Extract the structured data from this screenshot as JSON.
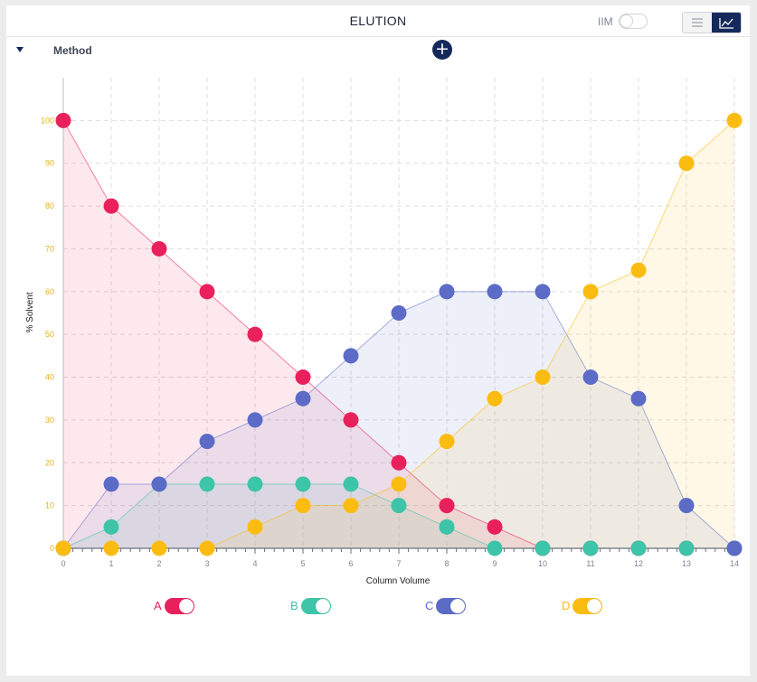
{
  "header": {
    "title": "ELUTION",
    "iim_label": "IIM",
    "iim_enabled": false,
    "view_buttons": [
      {
        "name": "list-view",
        "icon": "list-icon",
        "active": false
      },
      {
        "name": "chart-view",
        "icon": "line-chart-icon",
        "active": true
      }
    ]
  },
  "method": {
    "label": "Method",
    "expanded": true,
    "add_icon": "plus-icon"
  },
  "chart_data": {
    "type": "area",
    "xlabel": "Column Volume",
    "ylabel": "% Solvent",
    "xlim": [
      0,
      14
    ],
    "ylim": [
      0,
      110
    ],
    "x_ticks": [
      0,
      1,
      2,
      3,
      4,
      5,
      6,
      7,
      8,
      9,
      10,
      11,
      12,
      13,
      14
    ],
    "y_ticks": [
      0,
      10,
      20,
      30,
      40,
      50,
      60,
      70,
      80,
      90,
      100
    ],
    "grid": true,
    "legend_position": "bottom",
    "x": [
      0,
      1,
      2,
      3,
      4,
      5,
      6,
      7,
      8,
      9,
      10,
      11,
      12,
      13,
      14
    ],
    "series": [
      {
        "name": "A",
        "color": "#e8215d",
        "enabled": true,
        "values": [
          100,
          80,
          70,
          60,
          50,
          40,
          30,
          20,
          10,
          5,
          0,
          0,
          0,
          0,
          0
        ]
      },
      {
        "name": "B",
        "color": "#3ec4a8",
        "enabled": true,
        "values": [
          0,
          5,
          15,
          15,
          15,
          15,
          15,
          10,
          5,
          0,
          0,
          0,
          0,
          0,
          0
        ]
      },
      {
        "name": "C",
        "color": "#5c6bc6",
        "enabled": true,
        "values": [
          0,
          15,
          15,
          25,
          30,
          35,
          45,
          55,
          60,
          60,
          60,
          40,
          35,
          10,
          0
        ]
      },
      {
        "name": "D",
        "color": "#fbbc11",
        "enabled": true,
        "values": [
          0,
          0,
          0,
          0,
          5,
          10,
          10,
          15,
          25,
          35,
          40,
          60,
          65,
          90,
          100
        ]
      }
    ]
  }
}
